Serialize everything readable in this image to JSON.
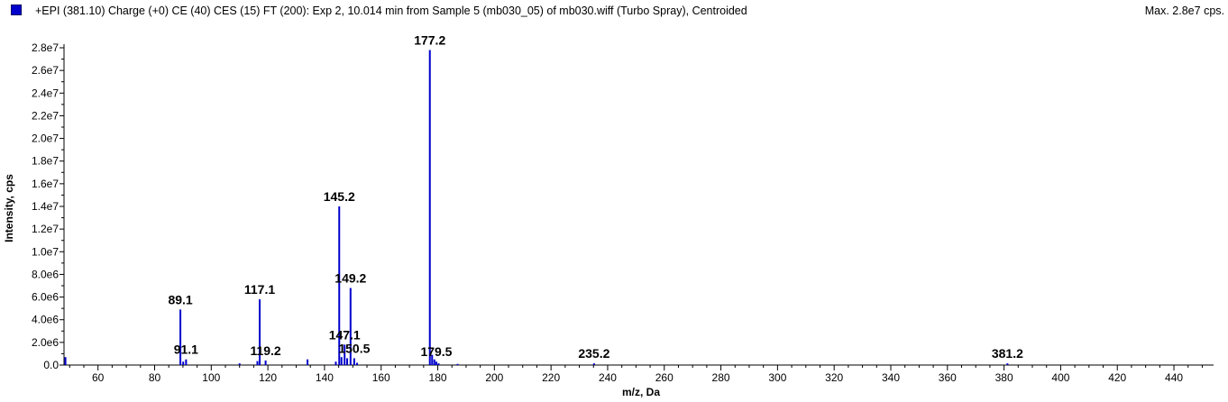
{
  "header": {
    "title": "+EPI (381.10) Charge (+0) CE (40) CES (15) FT (200): Exp 2, 10.014 min from Sample 5 (mb030_05) of mb030.wiff (Turbo Spray), Centroided",
    "max": "Max. 2.8e7 cps.",
    "legend_color": "#0000cc"
  },
  "chart_data": {
    "type": "bar",
    "xlabel": "m/z, Da",
    "ylabel": "Intensity, cps",
    "xlim": [
      48,
      454
    ],
    "ylim": [
      0,
      28000000
    ],
    "x_ticks": [
      "60",
      "80",
      "100",
      "120",
      "140",
      "160",
      "180",
      "200",
      "220",
      "240",
      "260",
      "280",
      "300",
      "320",
      "340",
      "360",
      "380",
      "400",
      "420",
      "440"
    ],
    "y_ticks": [
      "0.0",
      "2.0e6",
      "4.0e6",
      "6.0e6",
      "8.0e6",
      "1.0e7",
      "1.2e7",
      "1.4e7",
      "1.6e7",
      "1.8e7",
      "2.0e7",
      "2.2e7",
      "2.4e7",
      "2.6e7",
      "2.8e7"
    ],
    "color": "#0000cc",
    "grid": false,
    "peaks": [
      {
        "x": 48.5,
        "y": 700000
      },
      {
        "x": 89.1,
        "y": 4900000,
        "label": "89.1"
      },
      {
        "x": 90.1,
        "y": 300000
      },
      {
        "x": 91.1,
        "y": 500000,
        "label": "91.1"
      },
      {
        "x": 110.0,
        "y": 150000
      },
      {
        "x": 116.3,
        "y": 350000
      },
      {
        "x": 117.1,
        "y": 5800000,
        "label": "117.1"
      },
      {
        "x": 119.2,
        "y": 400000,
        "label": "119.2"
      },
      {
        "x": 134.0,
        "y": 500000
      },
      {
        "x": 144.0,
        "y": 300000
      },
      {
        "x": 145.2,
        "y": 14000000,
        "label": "145.2"
      },
      {
        "x": 146.0,
        "y": 700000
      },
      {
        "x": 147.1,
        "y": 1800000,
        "label": "147.1"
      },
      {
        "x": 148.0,
        "y": 600000
      },
      {
        "x": 149.2,
        "y": 6800000,
        "label": "149.2"
      },
      {
        "x": 150.5,
        "y": 600000,
        "label": "150.5"
      },
      {
        "x": 151.5,
        "y": 200000
      },
      {
        "x": 177.2,
        "y": 27800000,
        "label": "177.2"
      },
      {
        "x": 178.0,
        "y": 900000
      },
      {
        "x": 178.8,
        "y": 500000
      },
      {
        "x": 179.5,
        "y": 300000,
        "label": "179.5"
      },
      {
        "x": 180.3,
        "y": 150000
      },
      {
        "x": 187.0,
        "y": 100000
      },
      {
        "x": 235.2,
        "y": 150000,
        "label": "235.2"
      },
      {
        "x": 381.2,
        "y": 150000,
        "label": "381.2"
      }
    ]
  }
}
